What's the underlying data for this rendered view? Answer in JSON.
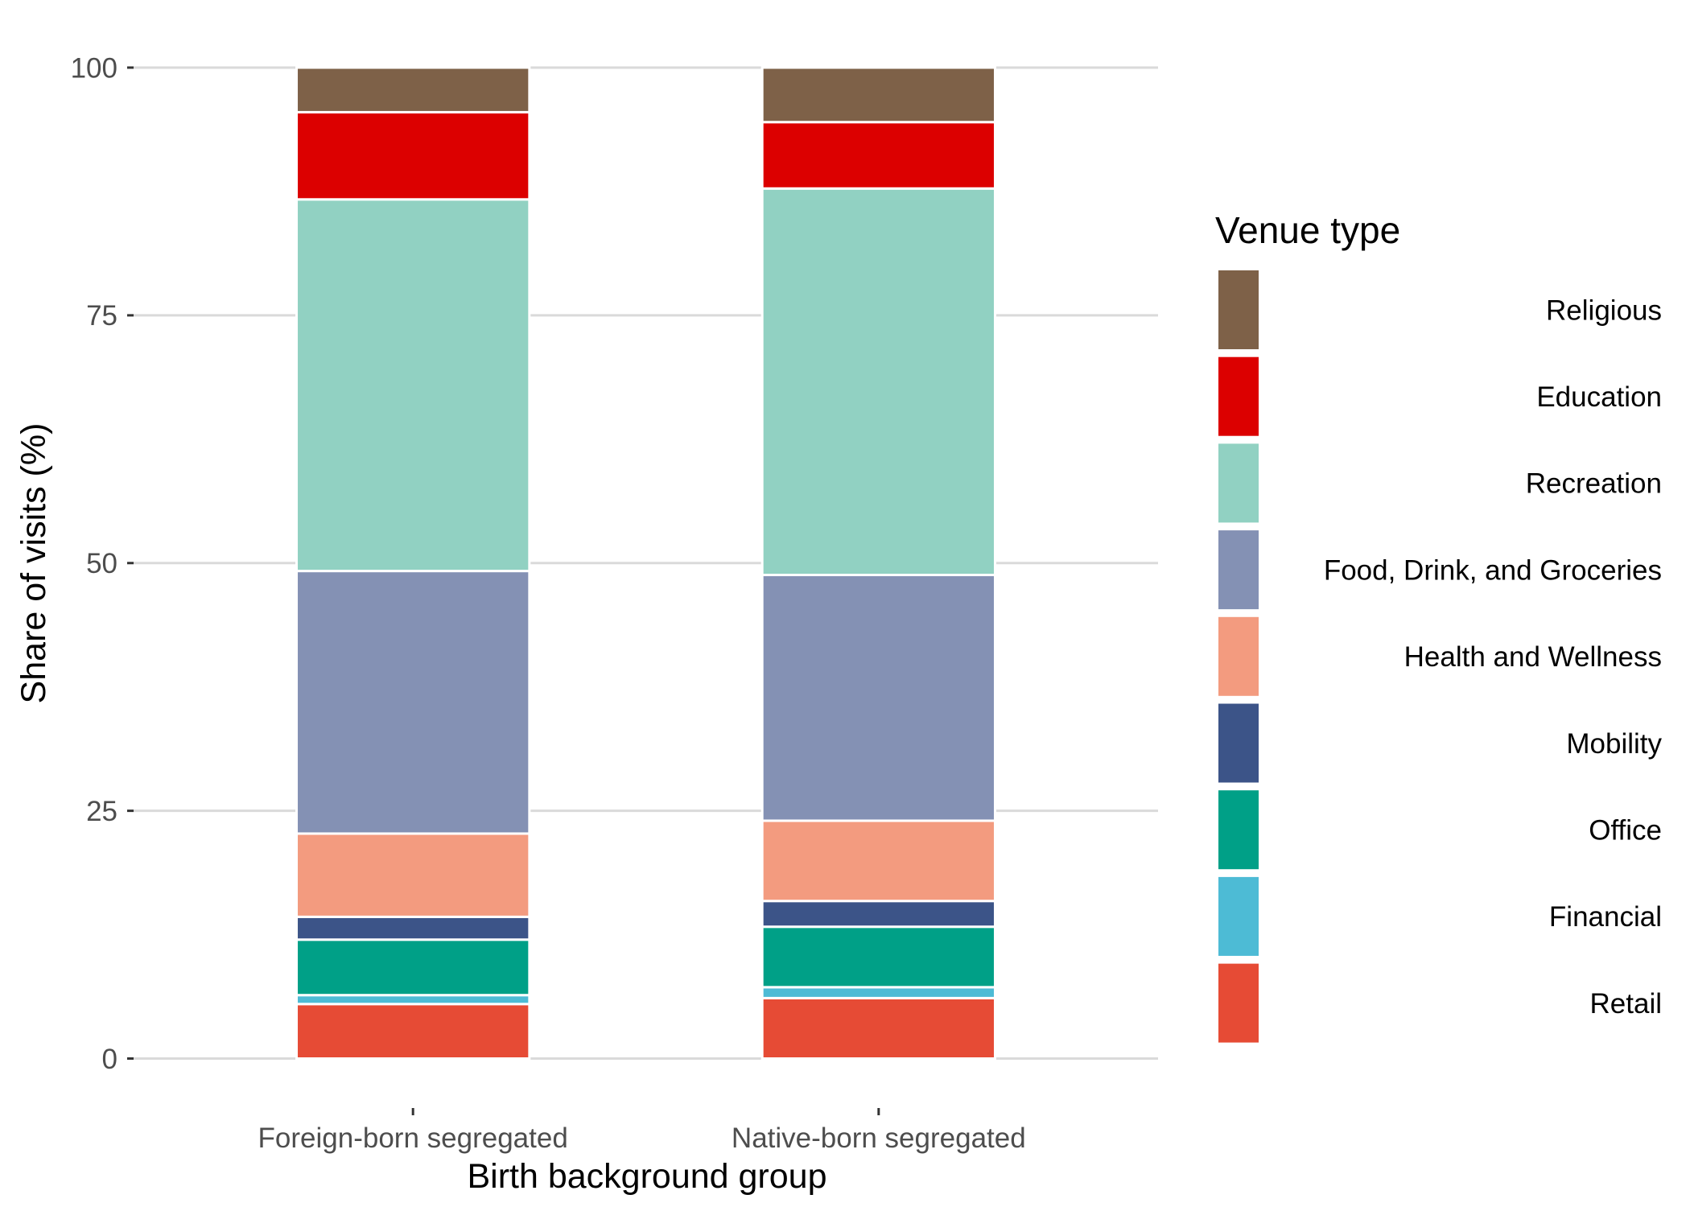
{
  "chart_data": {
    "type": "bar",
    "stacked": true,
    "categories": [
      "Foreign-born segregated",
      "Native-born segregated"
    ],
    "series": [
      {
        "name": "Retail",
        "color": "#E64B35",
        "values": [
          5.5,
          6.1
        ]
      },
      {
        "name": "Financial",
        "color": "#4DBBD5",
        "values": [
          0.9,
          1.1
        ]
      },
      {
        "name": "Office",
        "color": "#00A087",
        "values": [
          5.6,
          6.1
        ]
      },
      {
        "name": "Mobility",
        "color": "#3C5488",
        "values": [
          2.3,
          2.6
        ]
      },
      {
        "name": "Health and Wellness",
        "color": "#F39B7F",
        "values": [
          8.4,
          8.1
        ]
      },
      {
        "name": "Food, Drink, and Groceries",
        "color": "#8491B4",
        "values": [
          26.5,
          24.8
        ]
      },
      {
        "name": "Recreation",
        "color": "#91D1C2",
        "values": [
          37.5,
          39.0
        ]
      },
      {
        "name": "Education",
        "color": "#DC0000",
        "values": [
          8.8,
          6.7
        ]
      },
      {
        "name": "Religious",
        "color": "#7E6148",
        "values": [
          4.5,
          5.5
        ]
      }
    ],
    "xlabel": "Birth background group",
    "ylabel": "Share of visits (%)",
    "ylim": [
      0,
      100
    ],
    "yticks": [
      0,
      25,
      50,
      75,
      100
    ],
    "grid": true,
    "legend": {
      "title": "Venue type",
      "position": "right",
      "order": "reverse"
    }
  }
}
